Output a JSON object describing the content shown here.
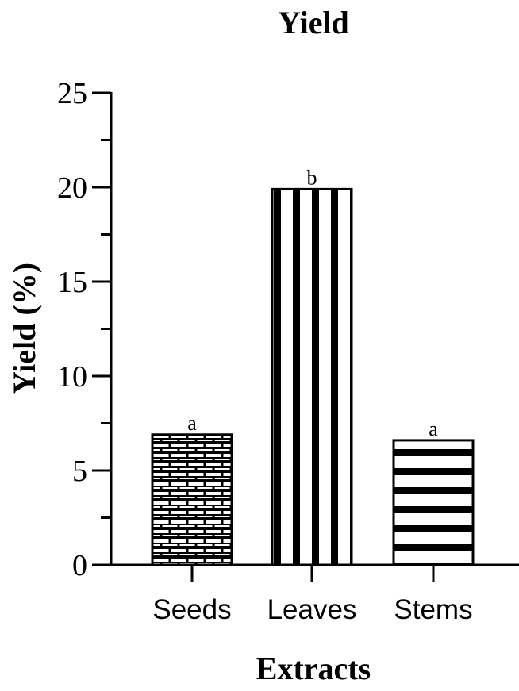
{
  "chart_data": {
    "type": "bar",
    "title": "Yield",
    "xlabel": "Extracts",
    "ylabel": "Yield (%)",
    "ylim": [
      0,
      25
    ],
    "yticks": [
      "0",
      "5",
      "10",
      "15",
      "20",
      "25"
    ],
    "categories": [
      "Seeds",
      "Leaves",
      "Stems"
    ],
    "values": [
      6.9,
      19.9,
      6.6
    ],
    "annotations": [
      "a",
      "b",
      "a"
    ],
    "patterns": [
      "brick",
      "vertical-stripes",
      "horizontal-stripes"
    ],
    "grid": false,
    "legend": "none",
    "colors": {
      "fill": "#ffffff",
      "stroke": "#000000"
    }
  }
}
